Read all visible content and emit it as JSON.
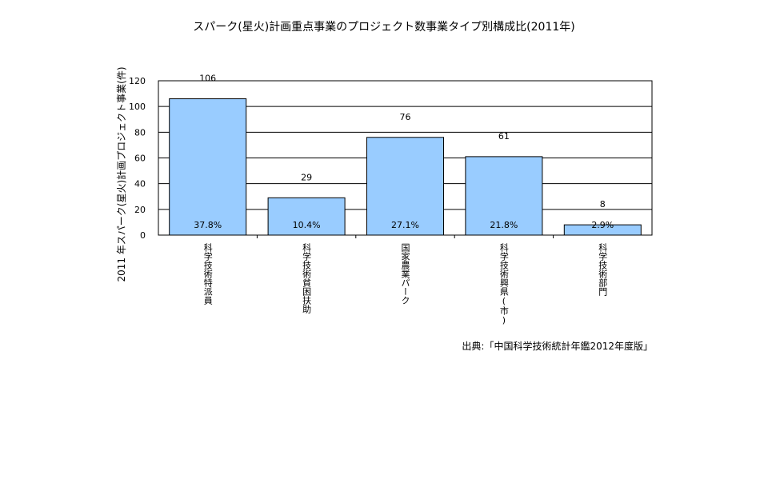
{
  "chart_data": {
    "type": "bar",
    "title": "スパーク(星火)計画重点事業のプロジェクト数事業タイプ別構成比(2011年)",
    "ylabel": "2011 年スパーク(星火)計画プロジェクト事業(件)",
    "xlabel": "",
    "ylim": [
      0,
      120
    ],
    "yticks": [
      0,
      20,
      40,
      60,
      80,
      100,
      120
    ],
    "grid": true,
    "categories": [
      "科学技術特派員",
      "科学技術貧困扶助",
      "国家農業パーク",
      "科学技術興県(市)",
      "科学技術部門"
    ],
    "values": [
      106,
      29,
      76,
      61,
      8
    ],
    "shares": [
      "37.8%",
      "10.4%",
      "27.1%",
      "21.8%",
      "2.9%"
    ],
    "source": "出典:「中国科学技術統計年鑑2012年度版」",
    "bar_color": "#99ccff"
  }
}
